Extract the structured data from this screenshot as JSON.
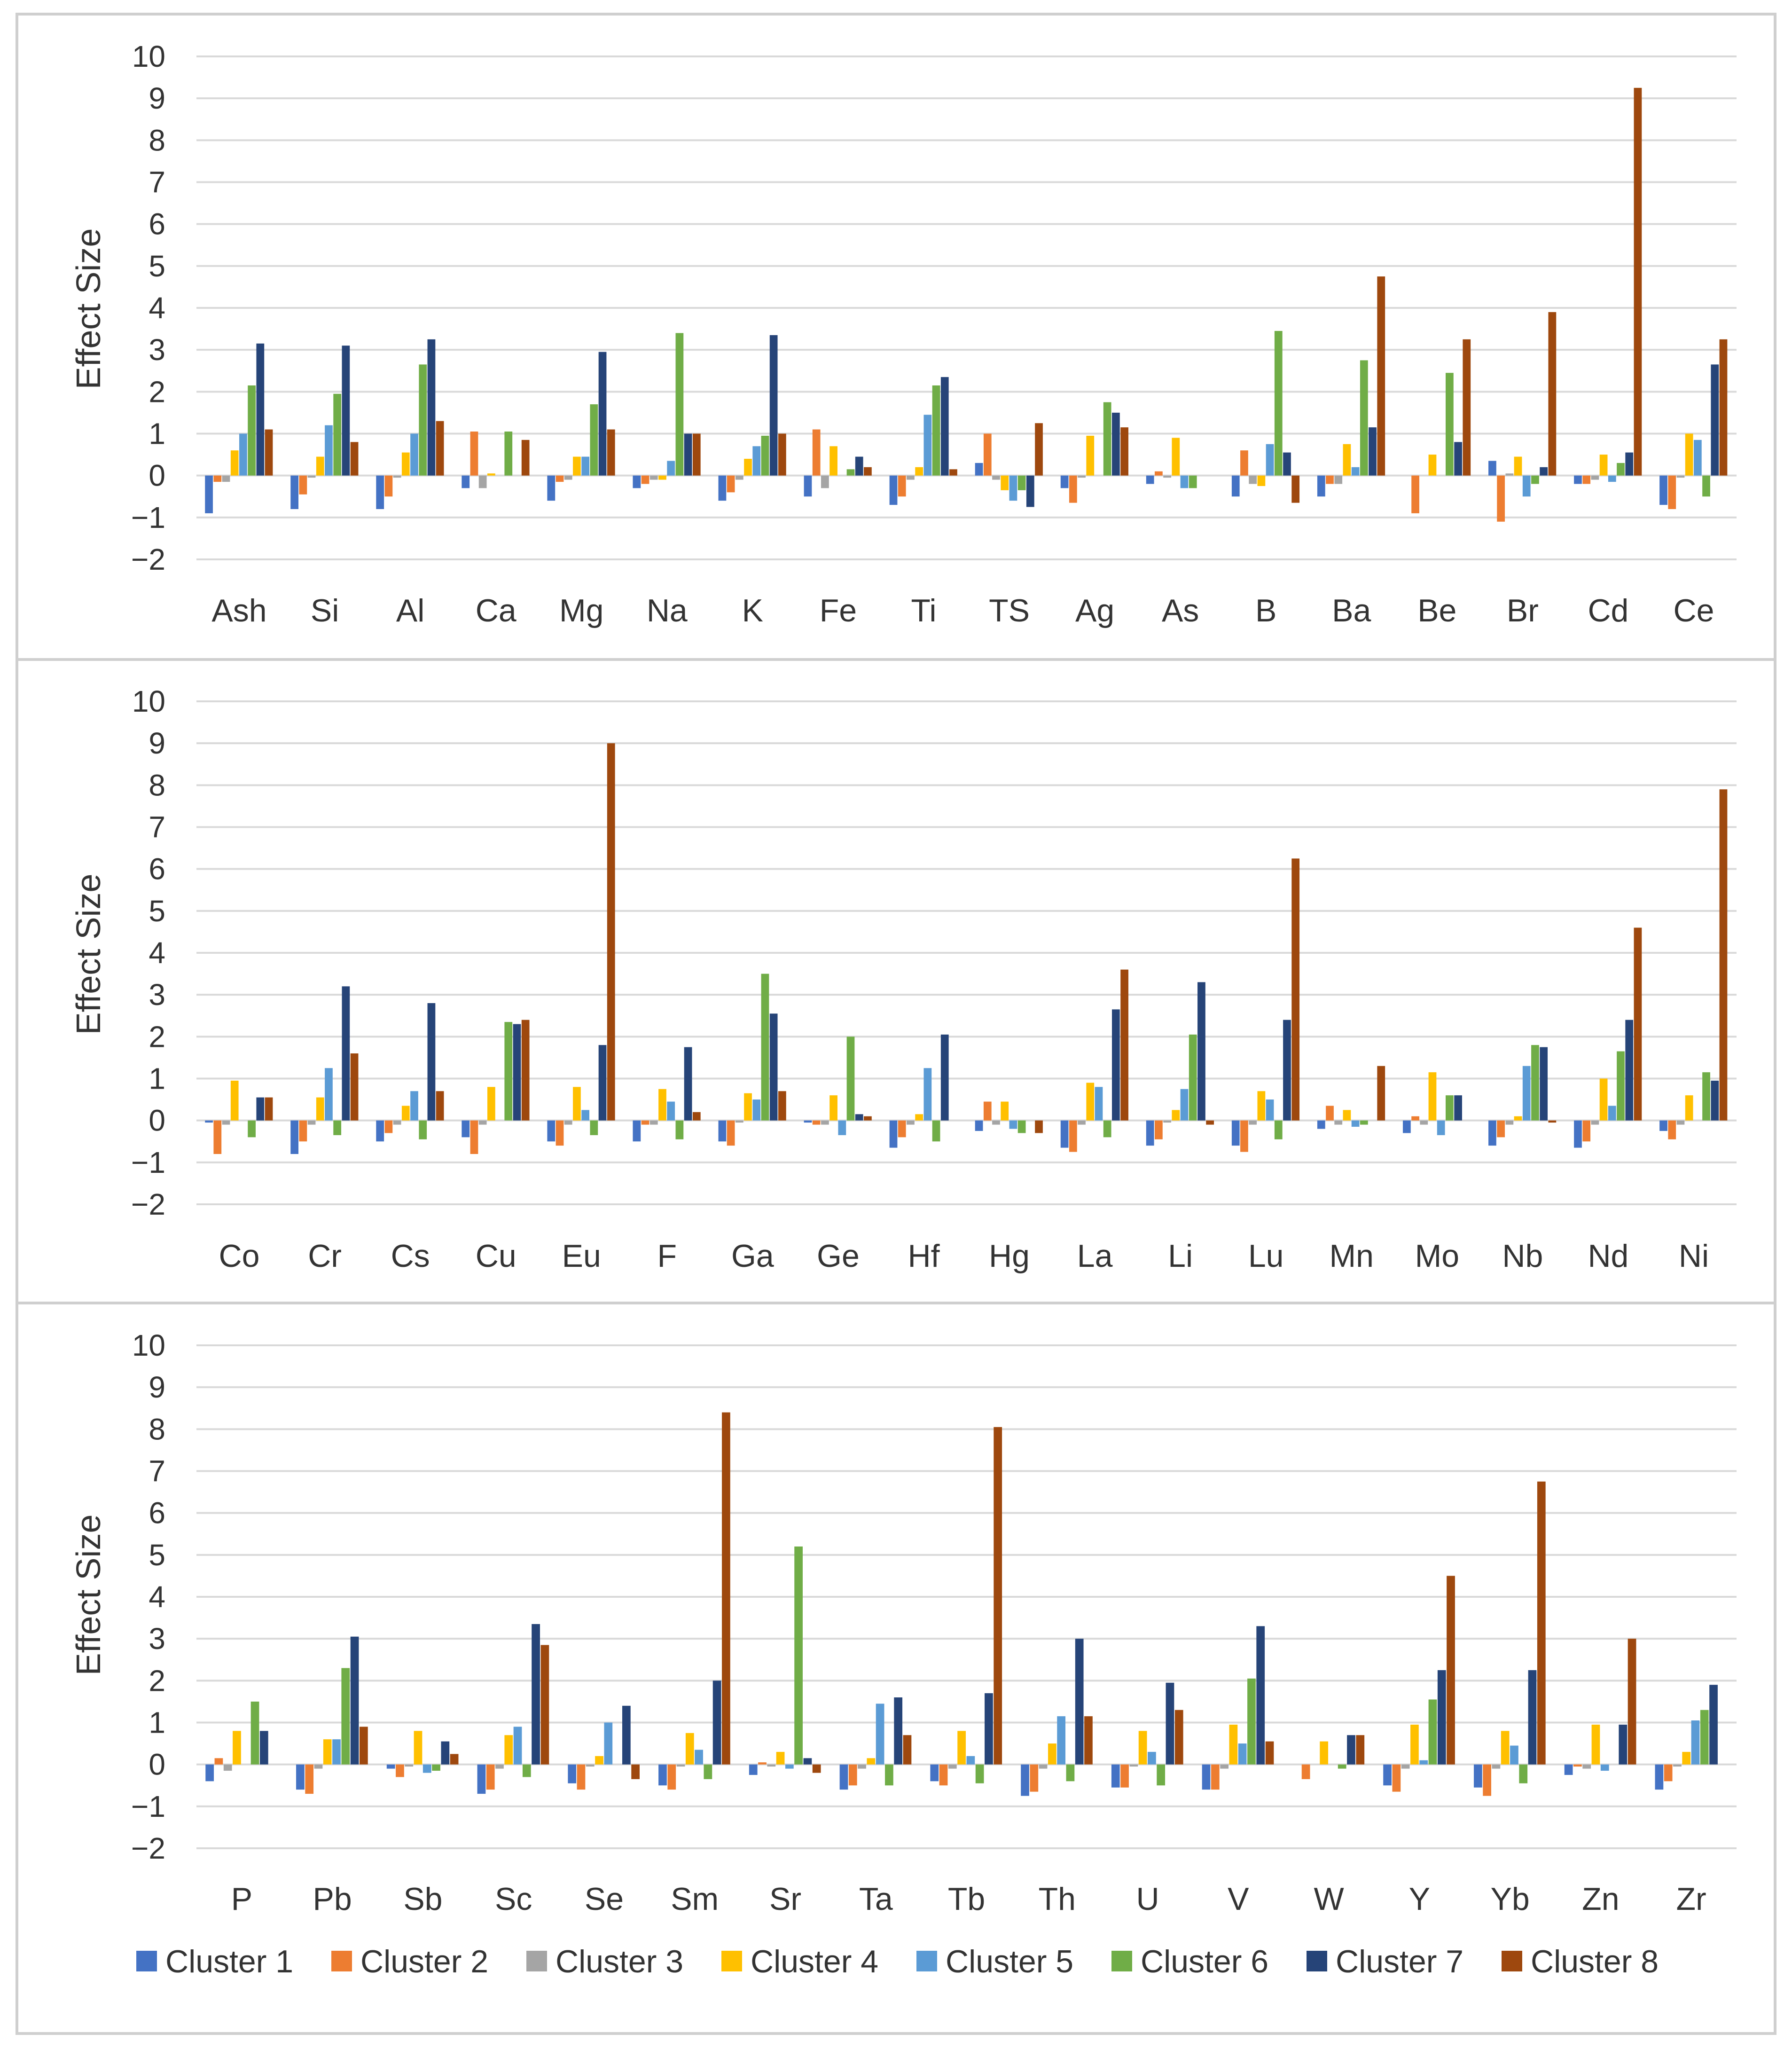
{
  "chart_data": [
    {
      "type": "bar",
      "title": "",
      "xlabel": "",
      "ylabel": "Effect Size",
      "ylim": [
        -2,
        10
      ],
      "yticks": [
        -2,
        -1,
        0,
        1,
        2,
        3,
        4,
        5,
        6,
        7,
        8,
        9,
        10
      ],
      "grid": true,
      "categories": [
        "Ash",
        "Si",
        "Al",
        "Ca",
        "Mg",
        "Na",
        "K",
        "Fe",
        "Ti",
        "TS",
        "Ag",
        "As",
        "B",
        "Ba",
        "Be",
        "Br",
        "Cd",
        "Ce"
      ],
      "series": [
        {
          "name": "Cluster 1",
          "values": [
            -0.9,
            -0.8,
            -0.8,
            -0.3,
            -0.6,
            -0.3,
            -0.6,
            -0.5,
            -0.7,
            0.3,
            -0.3,
            -0.2,
            -0.5,
            -0.5,
            0.0,
            0.35,
            -0.2,
            -0.7
          ]
        },
        {
          "name": "Cluster 2",
          "values": [
            -0.15,
            -0.45,
            -0.5,
            1.05,
            -0.15,
            -0.2,
            -0.4,
            1.1,
            -0.5,
            1.0,
            -0.65,
            0.1,
            0.6,
            -0.2,
            -0.9,
            -1.1,
            -0.2,
            -0.8
          ]
        },
        {
          "name": "Cluster 3",
          "values": [
            -0.15,
            -0.05,
            -0.05,
            -0.3,
            -0.1,
            -0.1,
            -0.1,
            -0.3,
            -0.1,
            -0.1,
            -0.05,
            -0.05,
            -0.2,
            -0.2,
            0.0,
            0.05,
            -0.1,
            -0.05
          ]
        },
        {
          "name": "Cluster 4",
          "values": [
            0.6,
            0.45,
            0.55,
            0.05,
            0.45,
            -0.1,
            0.4,
            0.7,
            0.2,
            -0.35,
            0.95,
            0.9,
            -0.25,
            0.75,
            0.5,
            0.45,
            0.5,
            1.0
          ]
        },
        {
          "name": "Cluster 5",
          "values": [
            1.0,
            1.2,
            1.0,
            0.0,
            0.45,
            0.35,
            0.7,
            0.0,
            1.45,
            -0.6,
            0.0,
            -0.3,
            0.75,
            0.2,
            0.0,
            -0.5,
            -0.15,
            0.85
          ]
        },
        {
          "name": "Cluster 6",
          "values": [
            2.15,
            1.95,
            2.65,
            1.05,
            1.7,
            3.4,
            0.95,
            0.15,
            2.15,
            -0.35,
            1.75,
            -0.3,
            3.45,
            2.75,
            2.45,
            -0.2,
            0.3,
            -0.5
          ]
        },
        {
          "name": "Cluster 7",
          "values": [
            3.15,
            3.1,
            3.25,
            0.0,
            2.95,
            1.0,
            3.35,
            0.45,
            2.35,
            -0.75,
            1.5,
            0.0,
            0.55,
            1.15,
            0.8,
            0.2,
            0.55,
            2.65
          ]
        },
        {
          "name": "Cluster 8",
          "values": [
            1.1,
            0.8,
            1.3,
            0.85,
            1.1,
            1.0,
            1.0,
            0.2,
            0.15,
            1.25,
            1.15,
            0.0,
            -0.65,
            4.75,
            3.25,
            3.9,
            9.25,
            3.25
          ]
        }
      ]
    },
    {
      "type": "bar",
      "title": "",
      "xlabel": "",
      "ylabel": "Effect Size",
      "ylim": [
        -2,
        10
      ],
      "yticks": [
        -2,
        -1,
        0,
        1,
        2,
        3,
        4,
        5,
        6,
        7,
        8,
        9,
        10
      ],
      "grid": true,
      "categories": [
        "Co",
        "Cr",
        "Cs",
        "Cu",
        "Eu",
        "F",
        "Ga",
        "Ge",
        "Hf",
        "Hg",
        "La",
        "Li",
        "Lu",
        "Mn",
        "Mo",
        "Nb",
        "Nd",
        "Ni"
      ],
      "series": [
        {
          "name": "Cluster 1",
          "values": [
            -0.05,
            -0.8,
            -0.5,
            -0.4,
            -0.5,
            -0.5,
            -0.5,
            -0.05,
            -0.65,
            -0.25,
            -0.65,
            -0.6,
            -0.6,
            -0.2,
            -0.3,
            -0.6,
            -0.65,
            -0.25
          ]
        },
        {
          "name": "Cluster 2",
          "values": [
            -0.8,
            -0.5,
            -0.3,
            -0.8,
            -0.6,
            -0.1,
            -0.6,
            -0.1,
            -0.4,
            0.45,
            -0.75,
            -0.45,
            -0.75,
            0.35,
            0.1,
            -0.4,
            -0.5,
            -0.45
          ]
        },
        {
          "name": "Cluster 3",
          "values": [
            -0.1,
            -0.1,
            -0.1,
            -0.1,
            -0.1,
            -0.1,
            -0.05,
            -0.1,
            -0.1,
            -0.1,
            -0.1,
            -0.05,
            -0.1,
            -0.1,
            -0.1,
            -0.1,
            -0.1,
            -0.1
          ]
        },
        {
          "name": "Cluster 4",
          "values": [
            0.95,
            0.55,
            0.35,
            0.8,
            0.8,
            0.75,
            0.65,
            0.6,
            0.15,
            0.45,
            0.9,
            0.25,
            0.7,
            0.25,
            1.15,
            0.1,
            1.0,
            0.6
          ]
        },
        {
          "name": "Cluster 5",
          "values": [
            0.0,
            1.25,
            0.7,
            0.0,
            0.25,
            0.45,
            0.5,
            -0.35,
            1.25,
            -0.2,
            0.8,
            0.75,
            0.5,
            -0.15,
            -0.35,
            1.3,
            0.35,
            0.0
          ]
        },
        {
          "name": "Cluster 6",
          "values": [
            -0.4,
            -0.35,
            -0.45,
            2.35,
            -0.35,
            -0.45,
            3.5,
            2.0,
            -0.5,
            -0.3,
            -0.4,
            2.05,
            -0.45,
            -0.1,
            0.6,
            1.8,
            1.65,
            1.15
          ]
        },
        {
          "name": "Cluster 7",
          "values": [
            0.55,
            3.2,
            2.8,
            2.3,
            1.8,
            1.75,
            2.55,
            0.15,
            2.05,
            0.0,
            2.65,
            3.3,
            2.4,
            0.0,
            0.6,
            1.75,
            2.4,
            0.95
          ]
        },
        {
          "name": "Cluster 8",
          "values": [
            0.55,
            1.6,
            0.7,
            2.4,
            9.0,
            0.2,
            0.7,
            0.1,
            0.0,
            -0.3,
            3.6,
            -0.1,
            6.25,
            1.3,
            0.0,
            -0.05,
            4.6,
            7.9
          ]
        }
      ]
    },
    {
      "type": "bar",
      "title": "",
      "xlabel": "",
      "ylabel": "Effect Size",
      "ylim": [
        -2,
        10
      ],
      "yticks": [
        -2,
        -1,
        0,
        1,
        2,
        3,
        4,
        5,
        6,
        7,
        8,
        9,
        10
      ],
      "grid": true,
      "categories": [
        "P",
        "Pb",
        "Sb",
        "Sc",
        "Se",
        "Sm",
        "Sr",
        "Ta",
        "Tb",
        "Th",
        "U",
        "V",
        "W",
        "Y",
        "Yb",
        "Zn",
        "Zr"
      ],
      "series": [
        {
          "name": "Cluster 1",
          "values": [
            -0.4,
            -0.6,
            -0.1,
            -0.7,
            -0.45,
            -0.5,
            -0.25,
            -0.6,
            -0.4,
            -0.75,
            -0.55,
            -0.6,
            0.0,
            -0.5,
            -0.55,
            -0.25,
            -0.6
          ]
        },
        {
          "name": "Cluster 2",
          "values": [
            0.15,
            -0.7,
            -0.3,
            -0.6,
            -0.6,
            -0.6,
            0.05,
            -0.5,
            -0.5,
            -0.65,
            -0.55,
            -0.6,
            -0.35,
            -0.65,
            -0.75,
            -0.05,
            -0.4
          ]
        },
        {
          "name": "Cluster 3",
          "values": [
            -0.15,
            -0.1,
            -0.05,
            -0.1,
            -0.05,
            -0.05,
            -0.05,
            -0.1,
            -0.1,
            -0.1,
            -0.05,
            -0.1,
            0.0,
            -0.1,
            -0.1,
            -0.1,
            -0.05
          ]
        },
        {
          "name": "Cluster 4",
          "values": [
            0.8,
            0.6,
            0.8,
            0.7,
            0.2,
            0.75,
            0.3,
            0.15,
            0.8,
            0.5,
            0.8,
            0.95,
            0.55,
            0.95,
            0.8,
            0.95,
            0.3
          ]
        },
        {
          "name": "Cluster 5",
          "values": [
            0.0,
            0.6,
            -0.2,
            0.9,
            1.0,
            0.35,
            -0.1,
            1.45,
            0.2,
            1.15,
            0.3,
            0.5,
            0.0,
            0.1,
            0.45,
            -0.15,
            1.05
          ]
        },
        {
          "name": "Cluster 6",
          "values": [
            1.5,
            2.3,
            -0.15,
            -0.3,
            0.0,
            -0.35,
            5.2,
            -0.5,
            -0.45,
            -0.4,
            -0.5,
            2.05,
            -0.1,
            1.55,
            -0.45,
            0.0,
            1.3
          ]
        },
        {
          "name": "Cluster 7",
          "values": [
            0.8,
            3.05,
            0.55,
            3.35,
            1.4,
            2.0,
            0.15,
            1.6,
            1.7,
            3.0,
            1.95,
            3.3,
            0.7,
            2.25,
            2.25,
            0.95,
            1.9
          ]
        },
        {
          "name": "Cluster 8",
          "values": [
            0.0,
            0.9,
            0.25,
            2.85,
            -0.35,
            8.4,
            -0.2,
            0.7,
            8.05,
            1.15,
            1.3,
            0.55,
            0.7,
            4.5,
            6.75,
            3.0,
            0.0
          ]
        }
      ]
    }
  ],
  "legend": {
    "position": "bottom",
    "entries": [
      "Cluster 1",
      "Cluster 2",
      "Cluster 3",
      "Cluster 4",
      "Cluster 5",
      "Cluster 6",
      "Cluster 7",
      "Cluster 8"
    ]
  },
  "colors": {
    "series": [
      "#4472C4",
      "#ED7D31",
      "#A5A5A5",
      "#FFC000",
      "#5B9BD5",
      "#70AD47",
      "#264478",
      "#9E480E"
    ],
    "grid": "#D9D9D9",
    "axis_text": "#333333",
    "frame": "#CFCFCF"
  }
}
